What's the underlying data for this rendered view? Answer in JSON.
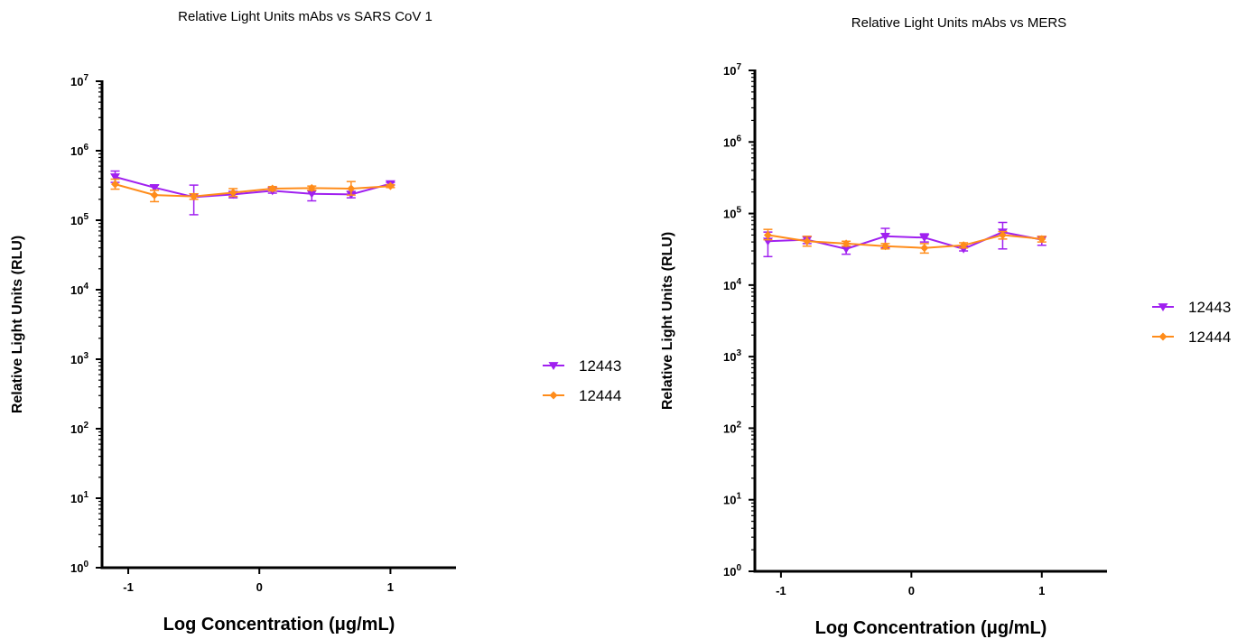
{
  "chart_data": [
    {
      "type": "line",
      "title": "Relative Light Units mAbs vs SARS CoV 1",
      "xlabel": "Log Concentration (μg/mL)",
      "ylabel": "Relative Light Units (RLU)",
      "xlim": [
        -1.2,
        1.5
      ],
      "x_ticks": [
        -1,
        0,
        1
      ],
      "y_scale": "log",
      "ylim": [
        1,
        10000000
      ],
      "y_ticks": [
        {
          "value": 1,
          "base": "10",
          "exp": "0"
        },
        {
          "value": 10,
          "base": "10",
          "exp": "1"
        },
        {
          "value": 100,
          "base": "10",
          "exp": "2"
        },
        {
          "value": 1000,
          "base": "10",
          "exp": "3"
        },
        {
          "value": 10000,
          "base": "10",
          "exp": "4"
        },
        {
          "value": 100000,
          "base": "10",
          "exp": "5"
        },
        {
          "value": 1000000,
          "base": "10",
          "exp": "6"
        },
        {
          "value": 10000000,
          "base": "10",
          "exp": "7"
        }
      ],
      "grid": false,
      "legend_position": "right",
      "x": [
        -1.1,
        -0.8,
        -0.5,
        -0.2,
        0.1,
        0.4,
        0.7,
        1.0
      ],
      "series": [
        {
          "name": "12443",
          "color": "#a020f0",
          "marker": "triangle-down",
          "values": [
            420000,
            295000,
            215000,
            235000,
            265000,
            240000,
            235000,
            335000
          ],
          "err_low": [
            350000,
            270000,
            120000,
            210000,
            245000,
            190000,
            210000,
            320000
          ],
          "err_high": [
            510000,
            320000,
            320000,
            260000,
            285000,
            290000,
            260000,
            350000
          ]
        },
        {
          "name": "12444",
          "color": "#ff8c1a",
          "marker": "diamond",
          "values": [
            330000,
            230000,
            220000,
            250000,
            285000,
            290000,
            285000,
            310000
          ],
          "err_low": [
            280000,
            185000,
            200000,
            220000,
            265000,
            270000,
            230000,
            295000
          ],
          "err_high": [
            390000,
            270000,
            240000,
            285000,
            305000,
            310000,
            360000,
            325000
          ]
        }
      ]
    },
    {
      "type": "line",
      "title": "Relative Light Units mAbs vs MERS",
      "xlabel": "Log Concentration (μg/mL)",
      "ylabel": "Relative Light Units (RLU)",
      "xlim": [
        -1.2,
        1.5
      ],
      "x_ticks": [
        -1,
        0,
        1
      ],
      "y_scale": "log",
      "ylim": [
        1,
        10000000
      ],
      "y_ticks": [
        {
          "value": 1,
          "base": "10",
          "exp": "0"
        },
        {
          "value": 10,
          "base": "10",
          "exp": "1"
        },
        {
          "value": 100,
          "base": "10",
          "exp": "2"
        },
        {
          "value": 1000,
          "base": "10",
          "exp": "3"
        },
        {
          "value": 10000,
          "base": "10",
          "exp": "4"
        },
        {
          "value": 100000,
          "base": "10",
          "exp": "5"
        },
        {
          "value": 1000000,
          "base": "10",
          "exp": "6"
        },
        {
          "value": 10000000,
          "base": "10",
          "exp": "7"
        }
      ],
      "grid": false,
      "legend_position": "right",
      "x": [
        -1.1,
        -0.8,
        -0.5,
        -0.2,
        0.1,
        0.4,
        0.7,
        1.0
      ],
      "series": [
        {
          "name": "12443",
          "color": "#a020f0",
          "marker": "triangle-down",
          "values": [
            41000,
            43000,
            32000,
            48000,
            46000,
            32000,
            55000,
            43000
          ],
          "err_low": [
            25000,
            38000,
            27000,
            33000,
            40000,
            30000,
            32000,
            36000
          ],
          "err_high": [
            55000,
            48000,
            38000,
            62000,
            52000,
            34000,
            75000,
            48000
          ]
        },
        {
          "name": "12444",
          "color": "#ff8c1a",
          "marker": "diamond",
          "values": [
            50000,
            41000,
            38000,
            35000,
            33000,
            36000,
            50000,
            44000
          ],
          "err_low": [
            43000,
            35000,
            35000,
            32000,
            28000,
            33000,
            44000,
            40000
          ],
          "err_high": [
            60000,
            48000,
            41000,
            38000,
            38000,
            39000,
            56000,
            48000
          ]
        }
      ]
    }
  ]
}
